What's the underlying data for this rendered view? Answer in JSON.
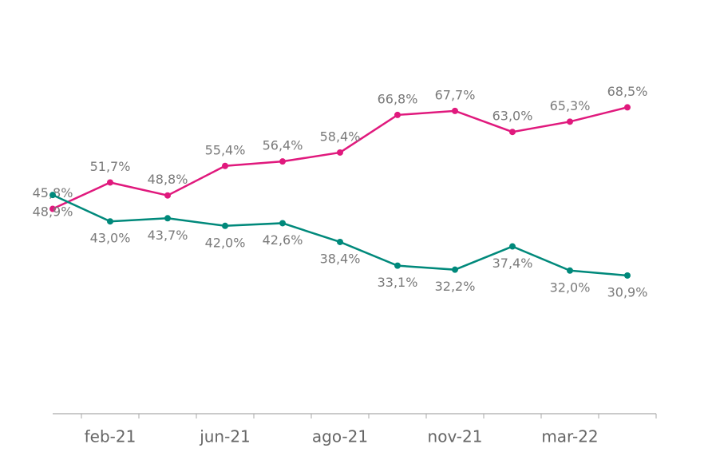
{
  "chart_data": {
    "type": "line",
    "categories": [
      null,
      "feb-21",
      null,
      "jun-21",
      null,
      "ago-21",
      null,
      "nov-21",
      null,
      "mar-22",
      null
    ],
    "series": [
      {
        "color": "#e0197d",
        "values": [
          45.8,
          51.7,
          48.8,
          55.4,
          56.4,
          58.4,
          66.8,
          67.7,
          63.0,
          65.3,
          68.5
        ],
        "value_labels": [
          "45,8%",
          "51,7%",
          "48,8%",
          "55,4%",
          "56,4%",
          "58,4%",
          "66,8%",
          "67,7%",
          "63,0%",
          "65,3%",
          "68,5%"
        ]
      },
      {
        "color": "#00897b",
        "values": [
          48.9,
          43.0,
          43.7,
          42.0,
          42.6,
          38.4,
          33.1,
          32.2,
          37.4,
          32.0,
          30.9
        ],
        "value_labels": [
          "48,9%",
          "43,0%",
          "43,7%",
          "42,0%",
          "42,6%",
          "38,4%",
          "33,1%",
          "32,2%",
          "37,4%",
          "32,0%",
          "30,9%"
        ]
      }
    ],
    "ylim": [
      0,
      92.5
    ]
  }
}
